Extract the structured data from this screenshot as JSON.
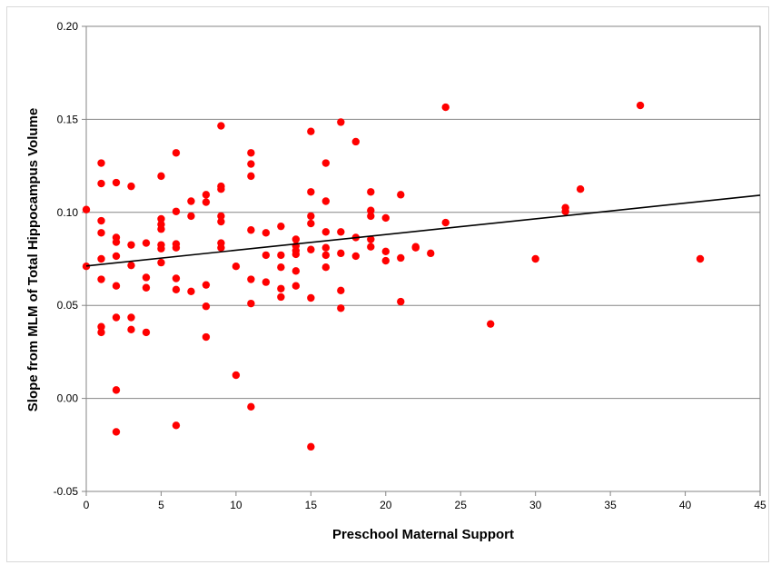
{
  "chart_data": {
    "type": "scatter",
    "title": "",
    "xlabel": "Preschool Maternal Support",
    "ylabel": "Slope from MLM of Total Hippocampus Volume",
    "xlim": [
      0,
      45
    ],
    "ylim": [
      -0.05,
      0.2
    ],
    "x_ticks": [
      0,
      5,
      10,
      15,
      20,
      25,
      30,
      35,
      40,
      45
    ],
    "y_ticks": [
      -0.05,
      0.0,
      0.05,
      0.1,
      0.15,
      0.2
    ],
    "y_tick_labels": [
      "-0.05",
      "0.00",
      "0.05",
      "0.10",
      "0.15",
      "0.20"
    ],
    "grid": "horizontal",
    "legend": "none",
    "marker_color": "#ff0000",
    "trendline_color": "#000000",
    "trendline": {
      "x": [
        0,
        45
      ],
      "y": [
        0.0712,
        0.1092
      ]
    },
    "series": [
      {
        "points": [
          [
            0,
            0.1015
          ],
          [
            0,
            0.071
          ],
          [
            1,
            0.1265
          ],
          [
            1,
            0.1155
          ],
          [
            1,
            0.0955
          ],
          [
            1,
            0.089
          ],
          [
            1,
            0.075
          ],
          [
            1,
            0.064
          ],
          [
            1,
            0.0385
          ],
          [
            1,
            0.0355
          ],
          [
            2,
            0.116
          ],
          [
            2,
            0.0865
          ],
          [
            2,
            0.084
          ],
          [
            2,
            0.0765
          ],
          [
            2,
            0.0605
          ],
          [
            2,
            0.0435
          ],
          [
            2,
            0.0045
          ],
          [
            2,
            -0.018
          ],
          [
            3,
            0.114
          ],
          [
            3,
            0.0825
          ],
          [
            3,
            0.0715
          ],
          [
            3,
            0.0435
          ],
          [
            3,
            0.037
          ],
          [
            4,
            0.0835
          ],
          [
            4,
            0.065
          ],
          [
            4,
            0.0595
          ],
          [
            4,
            0.0355
          ],
          [
            5,
            0.1195
          ],
          [
            5,
            0.0965
          ],
          [
            5,
            0.0935
          ],
          [
            5,
            0.091
          ],
          [
            5,
            0.0825
          ],
          [
            5,
            0.0805
          ],
          [
            5,
            0.073
          ],
          [
            6,
            0.132
          ],
          [
            6,
            0.1005
          ],
          [
            6,
            0.083
          ],
          [
            6,
            0.081
          ],
          [
            6,
            0.0645
          ],
          [
            6,
            0.0585
          ],
          [
            6,
            -0.0145
          ],
          [
            7,
            0.106
          ],
          [
            7,
            0.098
          ],
          [
            7,
            0.0575
          ],
          [
            8,
            0.1095
          ],
          [
            8,
            0.1055
          ],
          [
            8,
            0.061
          ],
          [
            8,
            0.0495
          ],
          [
            8,
            0.033
          ],
          [
            9,
            0.1465
          ],
          [
            9,
            0.114
          ],
          [
            9,
            0.1125
          ],
          [
            9,
            0.098
          ],
          [
            9,
            0.095
          ],
          [
            9,
            0.0835
          ],
          [
            9,
            0.081
          ],
          [
            10,
            0.071
          ],
          [
            10,
            0.0125
          ],
          [
            11,
            0.132
          ],
          [
            11,
            0.126
          ],
          [
            11,
            0.1195
          ],
          [
            11,
            0.0905
          ],
          [
            11,
            0.064
          ],
          [
            11,
            0.051
          ],
          [
            11,
            -0.0045
          ],
          [
            12,
            0.089
          ],
          [
            12,
            0.077
          ],
          [
            12,
            0.0625
          ],
          [
            13,
            0.0925
          ],
          [
            13,
            0.077
          ],
          [
            13,
            0.0705
          ],
          [
            13,
            0.059
          ],
          [
            13,
            0.0545
          ],
          [
            14,
            0.0855
          ],
          [
            14,
            0.082
          ],
          [
            14,
            0.0795
          ],
          [
            14,
            0.0775
          ],
          [
            14,
            0.0685
          ],
          [
            14,
            0.0605
          ],
          [
            15,
            0.1435
          ],
          [
            15,
            0.111
          ],
          [
            15,
            0.098
          ],
          [
            15,
            0.094
          ],
          [
            15,
            0.08
          ],
          [
            15,
            0.054
          ],
          [
            15,
            -0.026
          ],
          [
            16,
            0.1265
          ],
          [
            16,
            0.106
          ],
          [
            16,
            0.0895
          ],
          [
            16,
            0.081
          ],
          [
            16,
            0.077
          ],
          [
            16,
            0.0705
          ],
          [
            17,
            0.1485
          ],
          [
            17,
            0.0895
          ],
          [
            17,
            0.078
          ],
          [
            17,
            0.058
          ],
          [
            17,
            0.0485
          ],
          [
            18,
            0.138
          ],
          [
            18,
            0.0865
          ],
          [
            18,
            0.0765
          ],
          [
            19,
            0.111
          ],
          [
            19,
            0.101
          ],
          [
            19,
            0.098
          ],
          [
            19,
            0.0855
          ],
          [
            19,
            0.0815
          ],
          [
            20,
            0.097
          ],
          [
            20,
            0.079
          ],
          [
            20,
            0.074
          ],
          [
            21,
            0.1095
          ],
          [
            21,
            0.0755
          ],
          [
            21,
            0.052
          ],
          [
            22,
            0.0815
          ],
          [
            22,
            0.081
          ],
          [
            23,
            0.078
          ],
          [
            24,
            0.1565
          ],
          [
            24,
            0.0945
          ],
          [
            27,
            0.04
          ],
          [
            30,
            0.075
          ],
          [
            32,
            0.1025
          ],
          [
            32,
            0.1005
          ],
          [
            33,
            0.1125
          ],
          [
            37,
            0.1575
          ],
          [
            41,
            0.075
          ]
        ]
      }
    ]
  }
}
